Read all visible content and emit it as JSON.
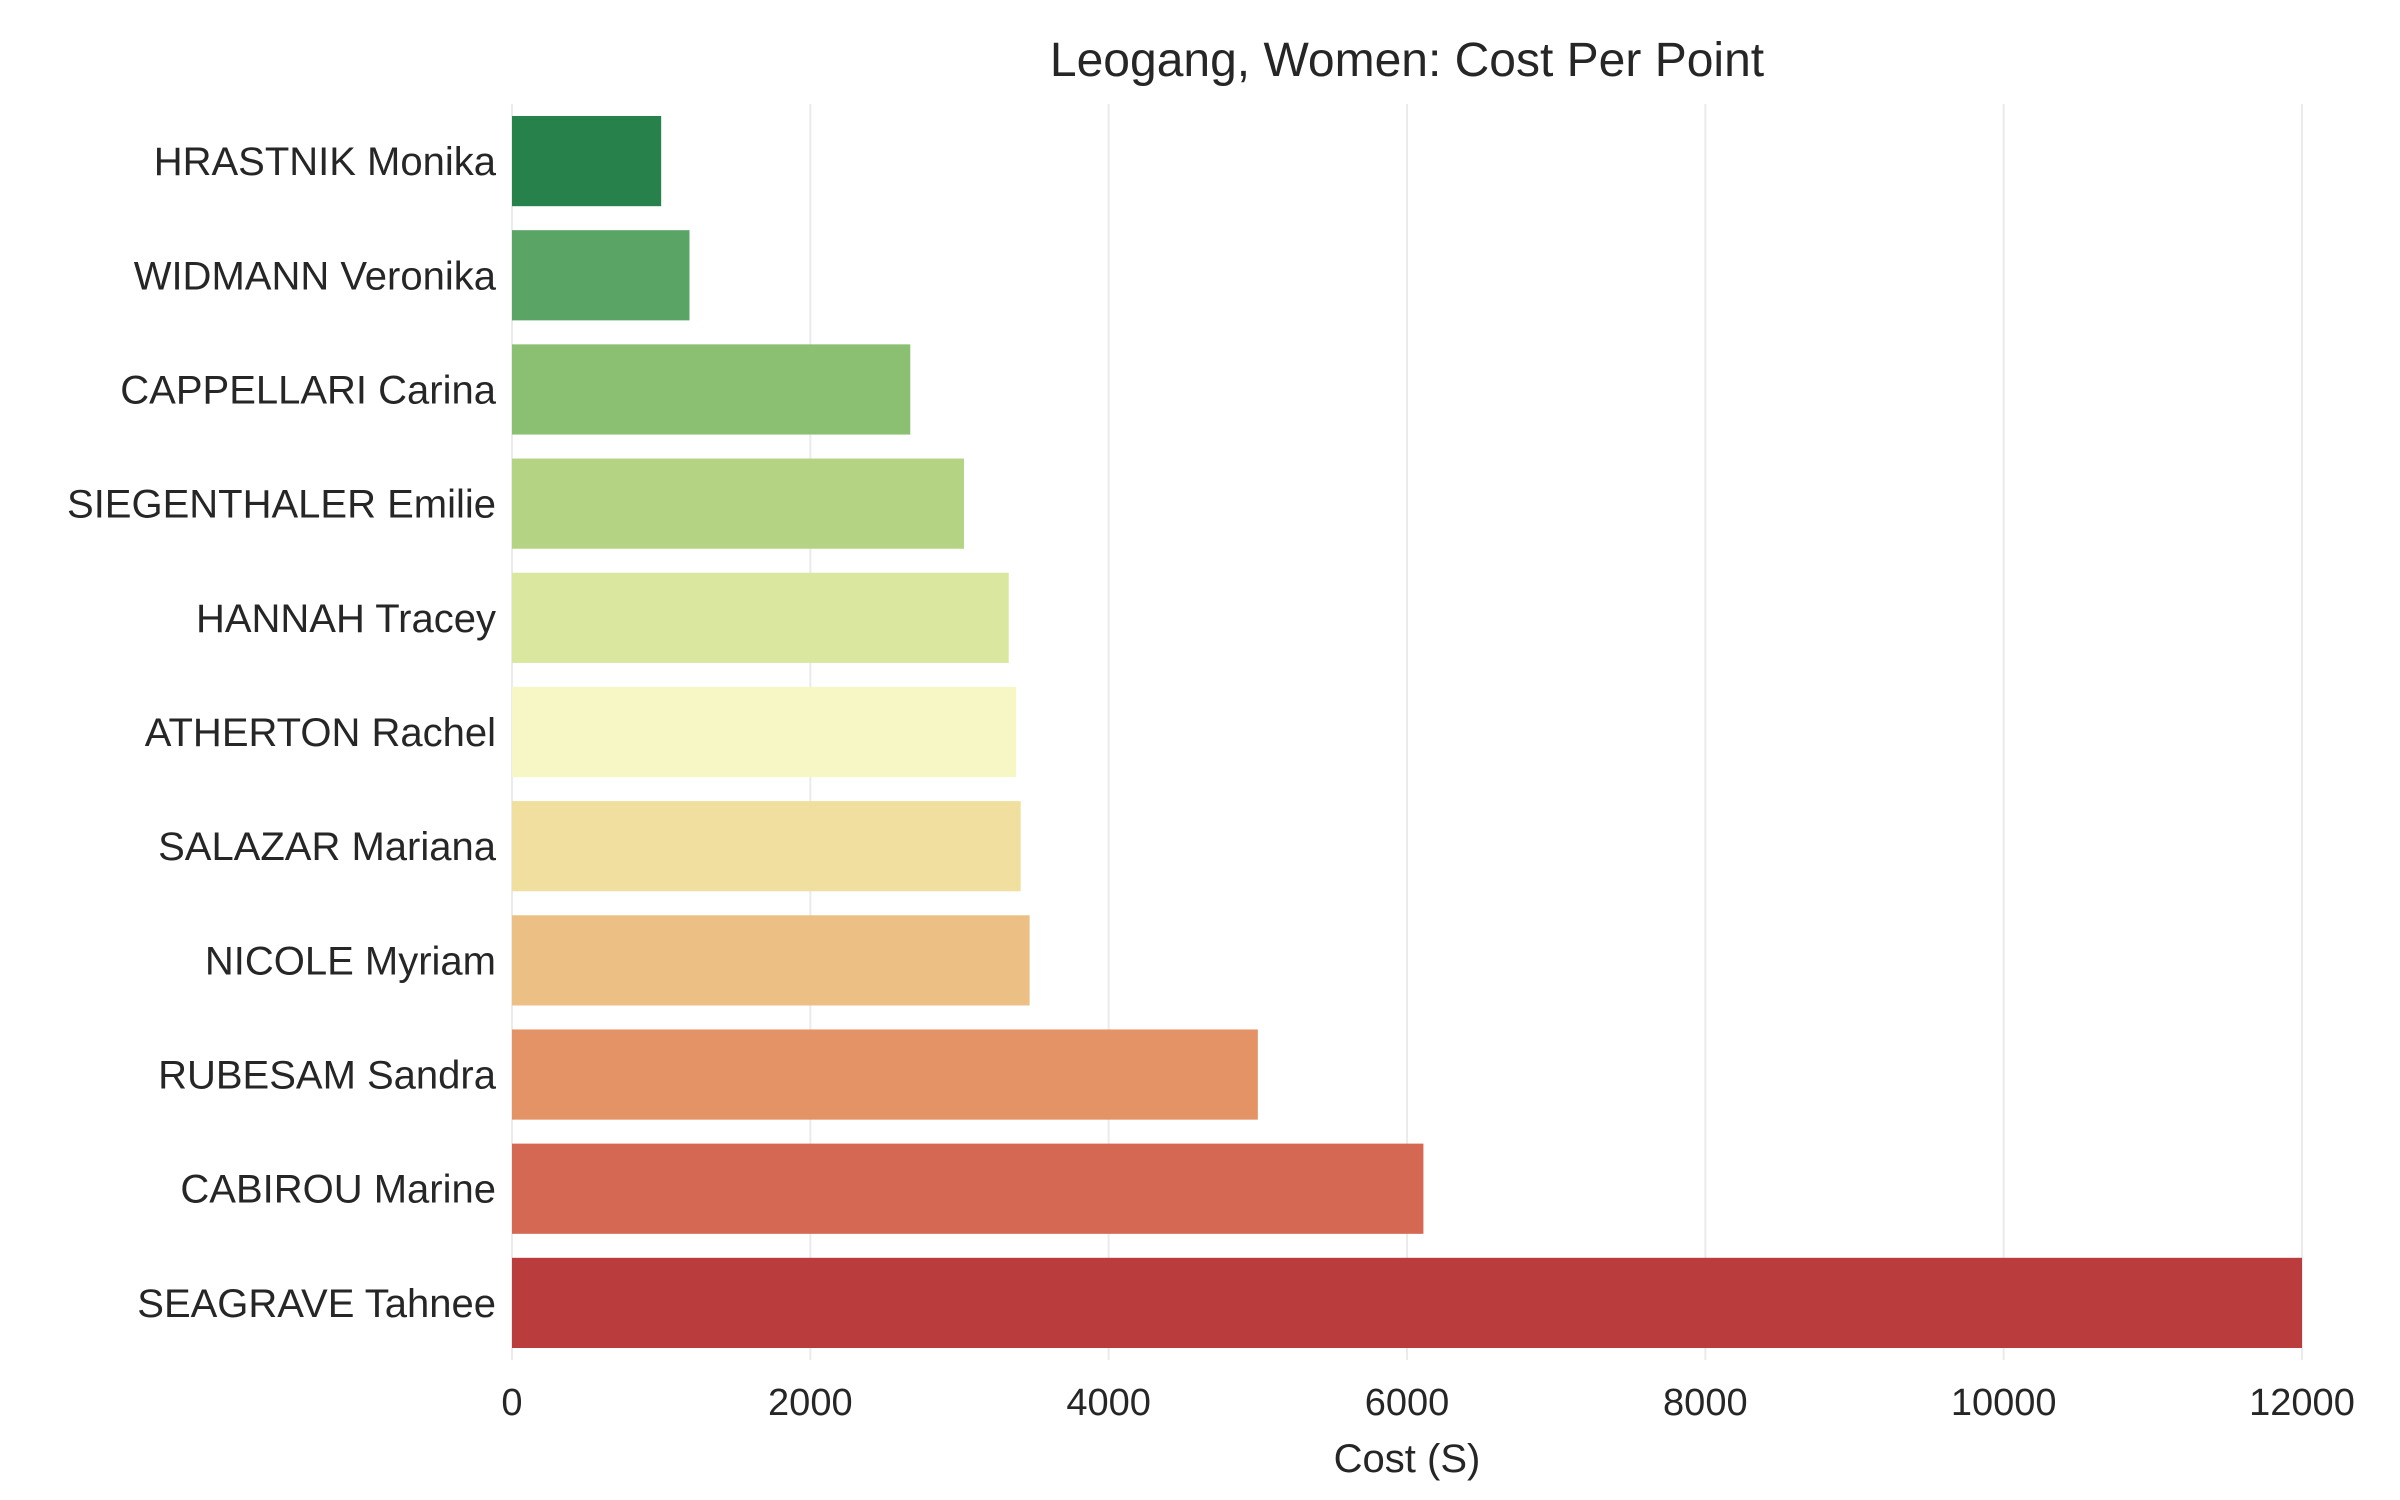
{
  "chart_data": {
    "type": "bar",
    "orientation": "horizontal",
    "title": "Leogang, Women: Cost Per Point",
    "xlabel": "Cost (S)",
    "ylabel": "",
    "xlim": [
      0,
      12000
    ],
    "x_ticks": [
      0,
      2000,
      4000,
      6000,
      8000,
      10000,
      12000
    ],
    "x_tick_labels": [
      "0",
      "2000",
      "4000",
      "6000",
      "8000",
      "10000",
      "12000"
    ],
    "grid": "vertical",
    "legend": "none",
    "categories": [
      "HRASTNIK Monika",
      "WIDMANN Veronika",
      "CAPPELLARI Carina",
      "SIEGENTHALER Emilie",
      "HANNAH Tracey",
      "ATHERTON Rachel",
      "SALAZAR Mariana",
      "NICOLE Myriam",
      "RUBESAM Sandra",
      "CABIROU Marine",
      "SEAGRAVE Tahnee"
    ],
    "values": [
      1000,
      1190,
      2670,
      3030,
      3330,
      3380,
      3410,
      3470,
      5000,
      6110,
      12000
    ],
    "colors": [
      "#27814b",
      "#5aa566",
      "#8bbf72",
      "#b4d483",
      "#dae79f",
      "#f7f6c5",
      "#f1df9f",
      "#ecbf84",
      "#e39366",
      "#d46852",
      "#ba3c3d"
    ]
  }
}
